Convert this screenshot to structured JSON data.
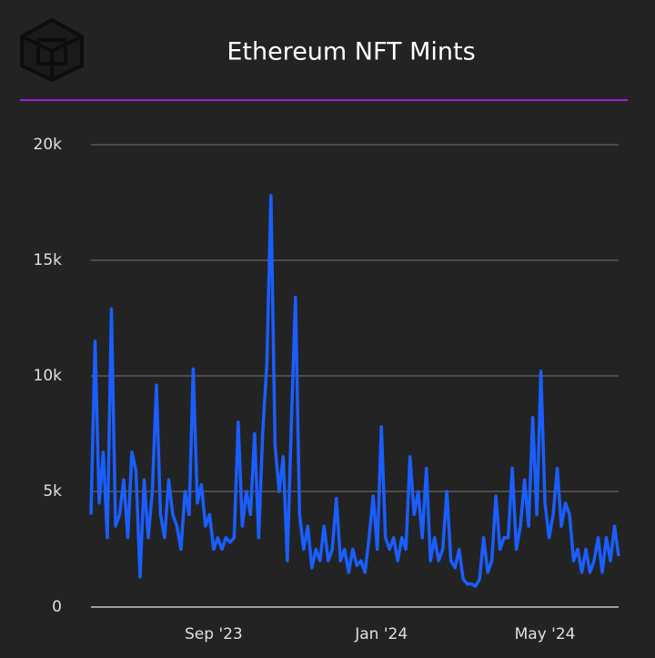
{
  "chart_data": {
    "type": "line",
    "title": "Ethereum NFT Mints",
    "categories": [
      null,
      null,
      null,
      null,
      null,
      null,
      null,
      null,
      null,
      null,
      null,
      null,
      null,
      null,
      null,
      null,
      null,
      null,
      null,
      null,
      null,
      null,
      null,
      null,
      null,
      null,
      null,
      null,
      null,
      null,
      "Sep '23",
      null,
      null,
      null,
      null,
      null,
      null,
      null,
      null,
      null,
      null,
      null,
      null,
      null,
      null,
      null,
      null,
      null,
      null,
      null,
      null,
      null,
      null,
      null,
      null,
      null,
      null,
      null,
      null,
      null,
      null,
      null,
      null,
      null,
      null,
      null,
      null,
      null,
      null,
      null,
      null,
      "Jan '24",
      null,
      null,
      null,
      null,
      null,
      null,
      null,
      null,
      null,
      null,
      null,
      null,
      null,
      null,
      null,
      null,
      null,
      null,
      null,
      null,
      null,
      null,
      null,
      null,
      null,
      null,
      null,
      null,
      null,
      null,
      null,
      null,
      null,
      null,
      null,
      null,
      null,
      null,
      null,
      "May '24",
      null,
      null,
      null,
      null,
      null,
      null,
      null,
      null,
      null,
      null,
      null,
      null,
      null,
      null,
      null,
      null,
      null,
      null
    ],
    "values": [
      4000,
      11500,
      4500,
      6700,
      3000,
      12900,
      3500,
      4000,
      5500,
      3000,
      6700,
      5900,
      1300,
      5500,
      3000,
      5000,
      9600,
      4000,
      3000,
      5500,
      4000,
      3500,
      2500,
      5000,
      4000,
      10300,
      4500,
      5300,
      3500,
      4000,
      2500,
      3000,
      2500,
      3000,
      2800,
      3000,
      8000,
      3500,
      5000,
      4000,
      7500,
      3000,
      7600,
      10500,
      17800,
      7000,
      5000,
      6500,
      2000,
      8000,
      13400,
      4000,
      2500,
      3500,
      1700,
      2500,
      2000,
      3500,
      2000,
      2500,
      4700,
      2000,
      2500,
      1500,
      2500,
      1800,
      2000,
      1500,
      3000,
      4800,
      2500,
      7800,
      3000,
      2500,
      3000,
      2000,
      3000,
      2500,
      6500,
      4000,
      5000,
      3000,
      6000,
      2000,
      3000,
      2000,
      2500,
      5000,
      2000,
      1700,
      2500,
      1200,
      1000,
      1000,
      900,
      1200,
      3000,
      1500,
      2000,
      4800,
      2500,
      3000,
      3000,
      6000,
      2500,
      3500,
      5500,
      3500,
      8200,
      4000,
      10200,
      4500,
      3000,
      4000,
      6000,
      3500,
      4500,
      4000,
      2000,
      2500,
      1500,
      2500,
      1500,
      2000,
      3000,
      1500,
      3000,
      2000,
      3500,
      2200
    ],
    "color": "#1a5eff",
    "ylim": [
      0,
      20000
    ],
    "yticks": [
      0,
      {
        "value": 5000,
        "label": "5k"
      },
      {
        "value": 10000,
        "label": "10k"
      },
      {
        "value": 15000,
        "label": "15k"
      },
      {
        "value": 20000,
        "label": "20k"
      }
    ],
    "grid": true
  }
}
